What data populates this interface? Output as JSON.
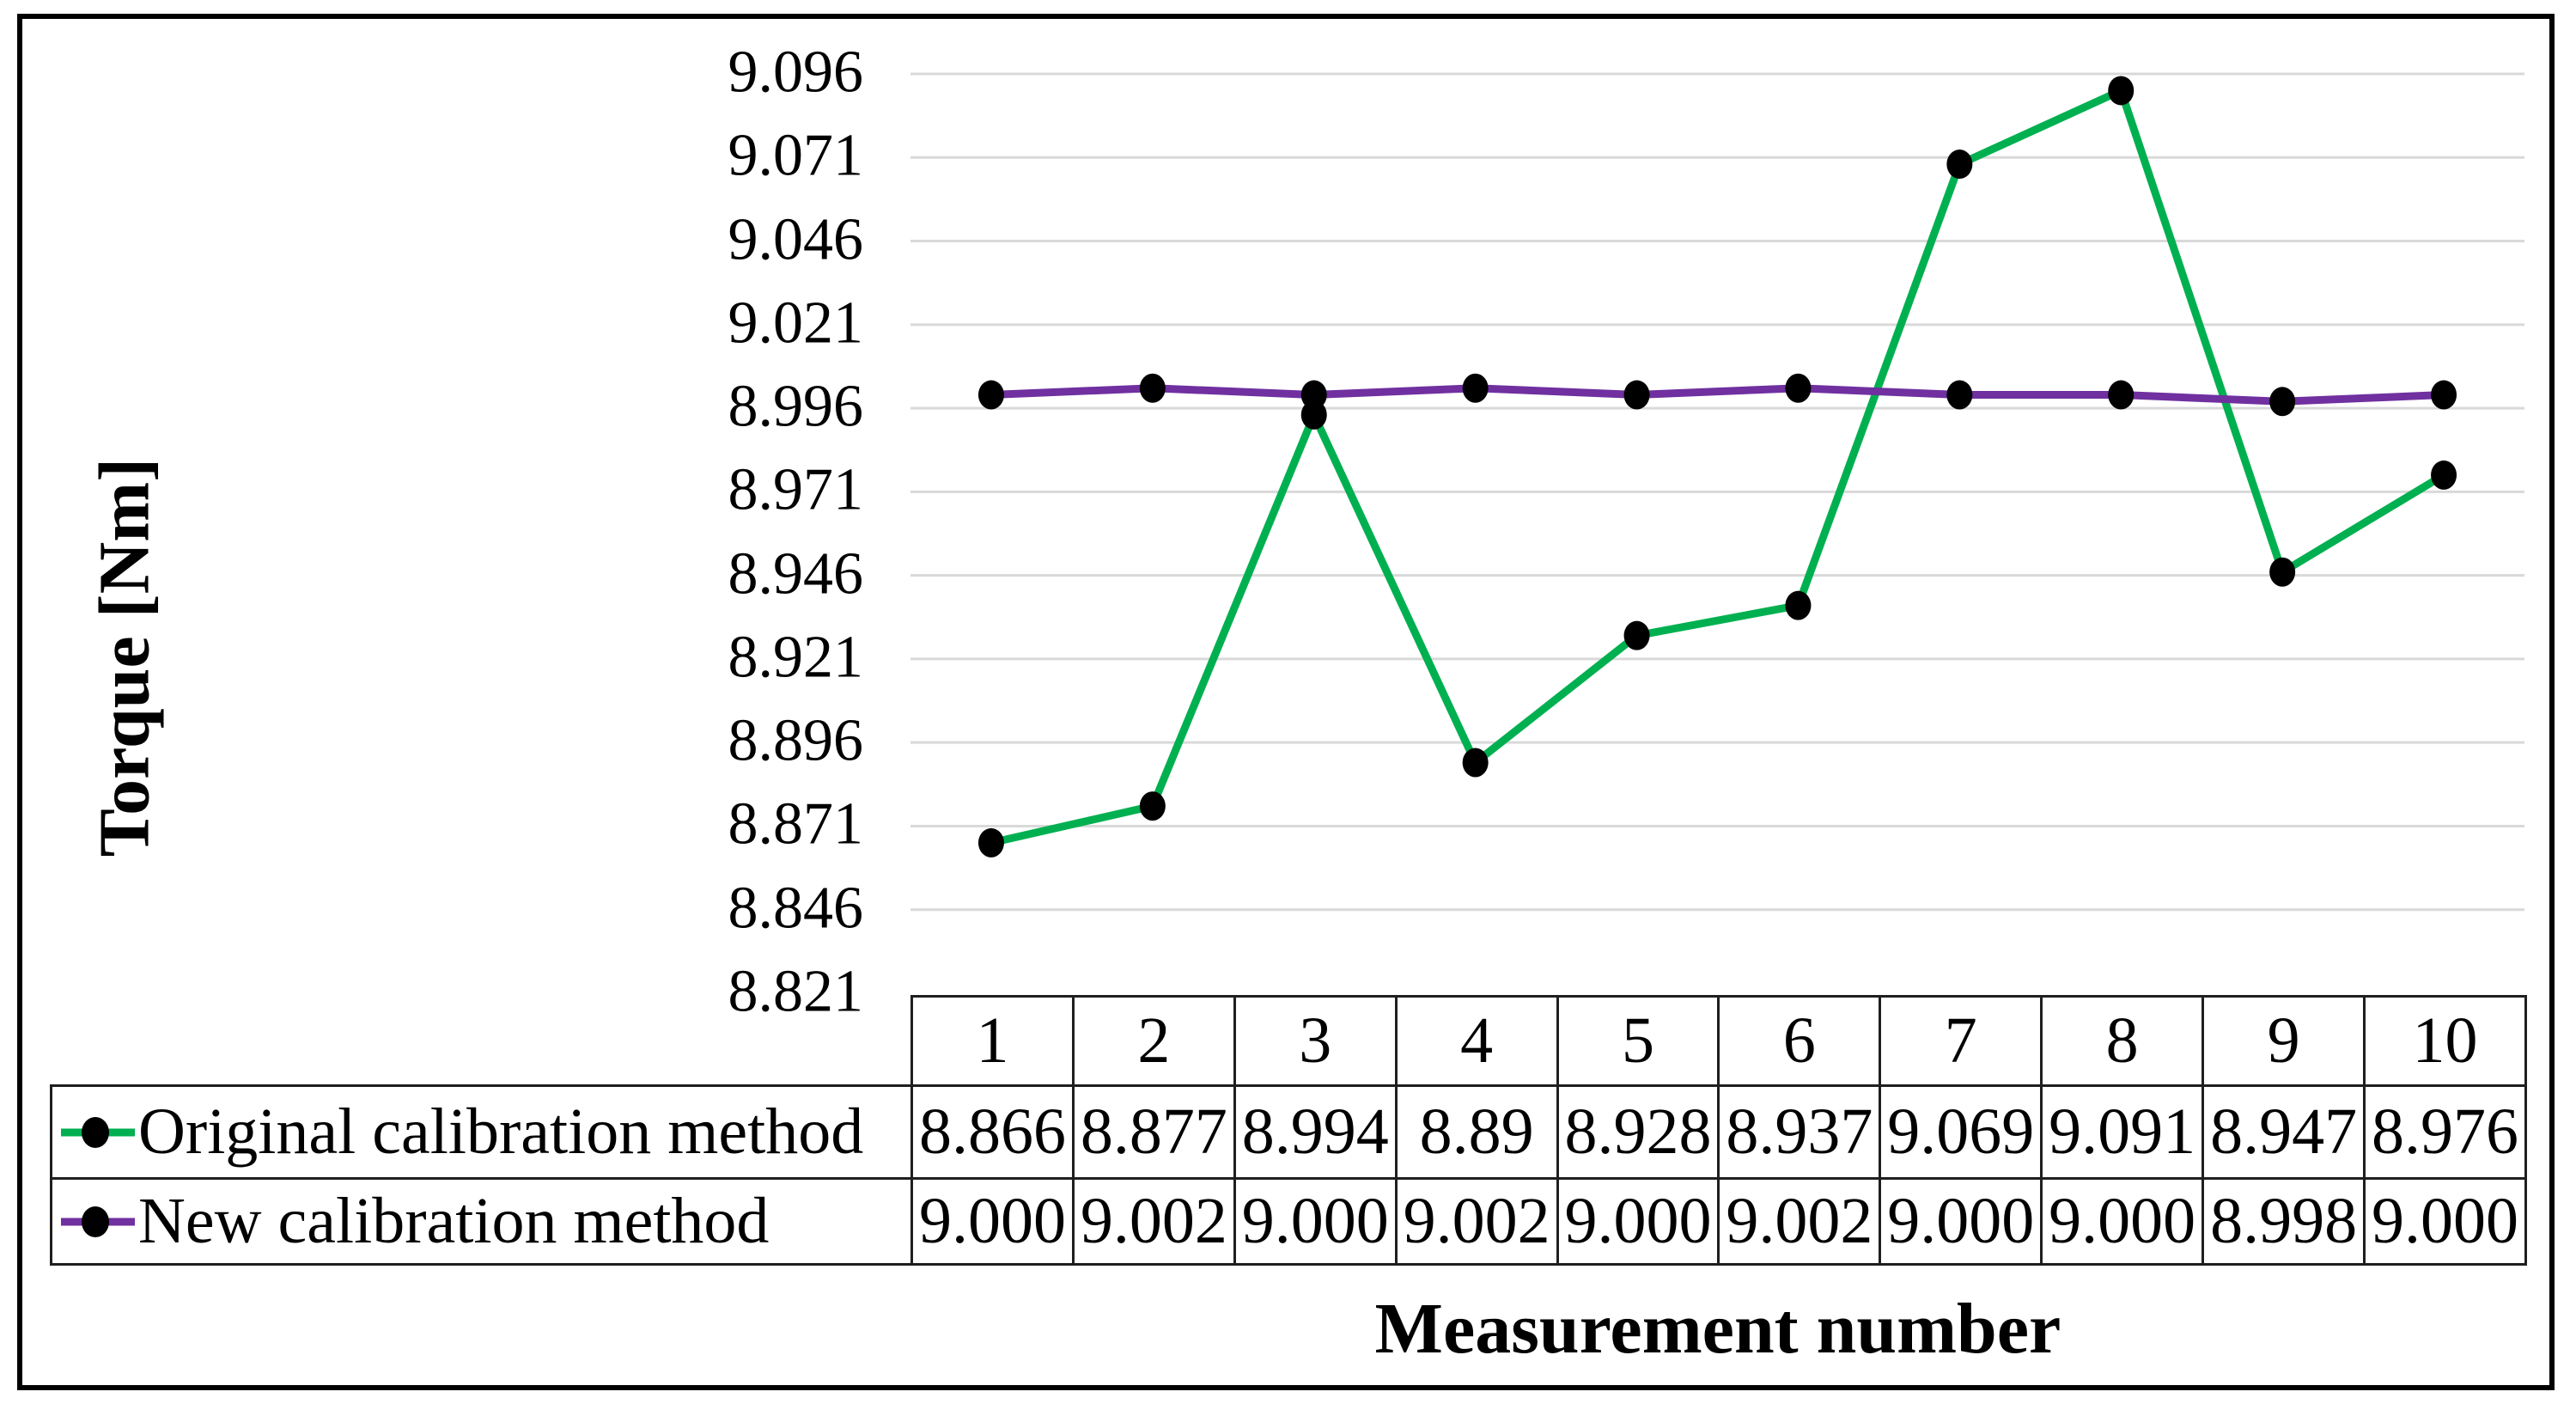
{
  "colors": {
    "series_original": "#00B050",
    "series_new": "#7030A0",
    "marker": "#000000",
    "gridline": "#D9D9D9",
    "table_border": "#1F1F1F",
    "figure_border": "#000000",
    "background": "#FFFFFF",
    "text": "#000000"
  },
  "chart_data": {
    "type": "line",
    "title": "",
    "xlabel": "Measurement number",
    "ylabel": "Torque [Nm]",
    "categories": [
      "1",
      "2",
      "3",
      "4",
      "5",
      "6",
      "7",
      "8",
      "9",
      "10"
    ],
    "y_ticks": [
      "9.096",
      "9.071",
      "9.046",
      "9.021",
      "8.996",
      "8.971",
      "8.946",
      "8.921",
      "8.896",
      "8.871",
      "8.846",
      "8.821"
    ],
    "ylim": [
      8.821,
      9.096
    ],
    "y_tick_step": 0.025,
    "grid": "horizontal-only",
    "legend_position": "table-left",
    "series": [
      {
        "name": "Original calibration method",
        "color": "#00B050",
        "values": [
          8.866,
          8.877,
          8.994,
          8.89,
          8.928,
          8.937,
          9.069,
          9.091,
          8.947,
          8.976
        ],
        "display_values": [
          "8.866",
          "8.877",
          "8.994",
          "8.89",
          "8.928",
          "8.937",
          "9.069",
          "9.091",
          "8.947",
          "8.976"
        ]
      },
      {
        "name": "New calibration method",
        "color": "#7030A0",
        "values": [
          9.0,
          9.002,
          9.0,
          9.002,
          9.0,
          9.002,
          9.0,
          9.0,
          8.998,
          9.0
        ],
        "display_values": [
          "9.000",
          "9.002",
          "9.000",
          "9.002",
          "9.000",
          "9.002",
          "9.000",
          "9.000",
          "8.998",
          "9.000"
        ]
      }
    ]
  }
}
